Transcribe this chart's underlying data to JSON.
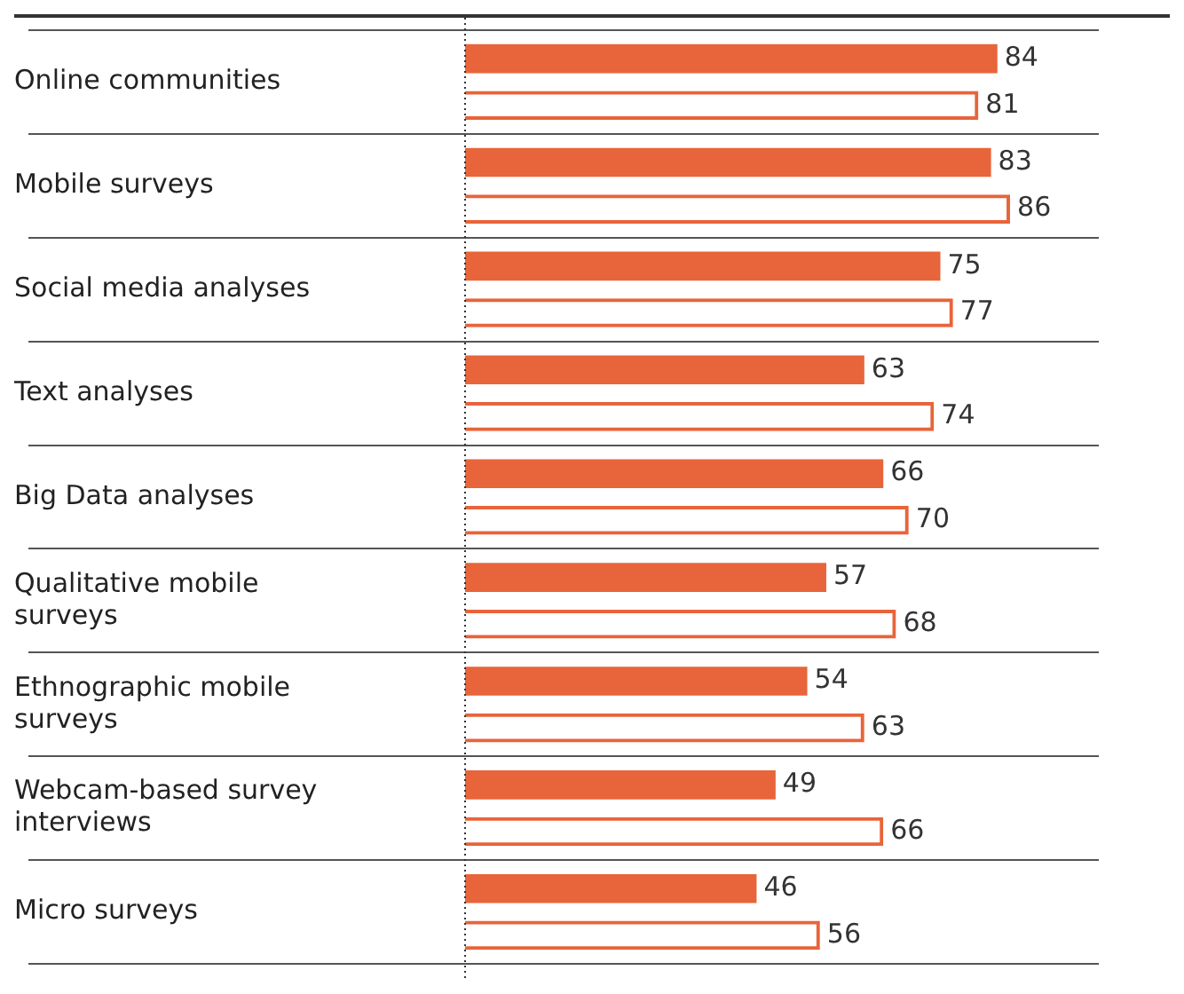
{
  "chart_data": {
    "type": "bar",
    "orientation": "horizontal",
    "categories": [
      "Online communities",
      "Mobile surveys",
      "Social media analyses",
      "Text analyses",
      "Big Data analyses",
      "Qualitative mobile surveys",
      "Ethnographic mobile surveys",
      "Webcam-based survey interviews",
      "Micro surveys"
    ],
    "series": [
      {
        "color": "#e8643a",
        "values": [
          84,
          83,
          75,
          63,
          66,
          57,
          54,
          49,
          46
        ]
      },
      {
        "color": "#e8643a",
        "values": [
          81,
          86,
          77,
          74,
          70,
          68,
          63,
          66,
          56
        ]
      }
    ],
    "data_labels": true,
    "grid": "y",
    "legend": false
  }
}
